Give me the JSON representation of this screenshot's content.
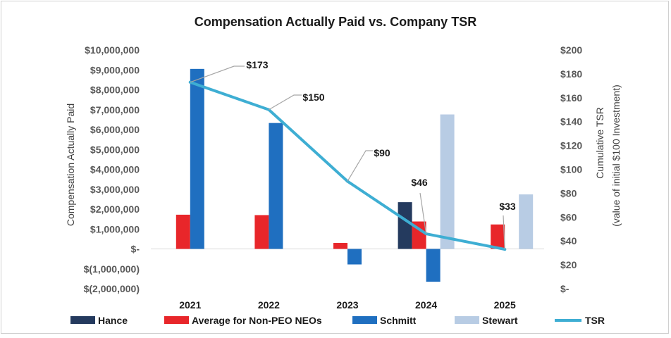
{
  "chart_data": {
    "type": "bar+line",
    "title": "Compensation Actually Paid vs. Company TSR",
    "ylabel": "Compensation Actually Paid",
    "y2label_line1": "Cumulative TSR",
    "y2label_line2": "(value of initial $100 Investment)",
    "categories": [
      "2021",
      "2022",
      "2023",
      "2024",
      "2025"
    ],
    "ylim": [
      -2000000,
      10000000
    ],
    "y_ticks": [
      10000000,
      9000000,
      8000000,
      7000000,
      6000000,
      5000000,
      4000000,
      3000000,
      2000000,
      1000000,
      0,
      -1000000,
      -2000000
    ],
    "y_tick_labels": [
      "$10,000,000",
      "$9,000,000",
      "$8,000,000",
      "$7,000,000",
      "$6,000,000",
      "$5,000,000",
      "$4,000,000",
      "$3,000,000",
      "$2,000,000",
      "$1,000,000",
      "$-",
      "$(1,000,000)",
      "$(2,000,000)"
    ],
    "y2lim": [
      0,
      200
    ],
    "y2_ticks": [
      200,
      180,
      160,
      140,
      120,
      100,
      80,
      60,
      40,
      20,
      0
    ],
    "y2_tick_labels": [
      "$200",
      "$180",
      "$160",
      "$140",
      "$120",
      "$100",
      "$80",
      "$60",
      "$40",
      "$20",
      "$-"
    ],
    "bar_series": [
      {
        "name": "Hance",
        "color": "#243a5e",
        "values": [
          null,
          null,
          null,
          2350000,
          null
        ]
      },
      {
        "name": "Average for Non-PEO NEOs",
        "color": "#e8262a",
        "values": [
          1720000,
          1700000,
          300000,
          1380000,
          1230000
        ]
      },
      {
        "name": "Schmitt",
        "color": "#1f6fc0",
        "values": [
          9050000,
          6330000,
          -780000,
          -1650000,
          null
        ]
      },
      {
        "name": "Stewart",
        "color": "#b8cce4",
        "values": [
          null,
          null,
          null,
          6760000,
          2740000
        ]
      }
    ],
    "line_series": {
      "name": "TSR",
      "color": "#3eaed3",
      "values": [
        173,
        150,
        90,
        46,
        33
      ]
    },
    "line_labels": [
      "$173",
      "$150",
      "$90",
      "$46",
      "$33"
    ],
    "legend": [
      "Hance",
      "Average for Non-PEO NEOs",
      "Schmitt",
      "Stewart",
      "TSR"
    ],
    "legend_position": "bottom",
    "grid": false
  }
}
